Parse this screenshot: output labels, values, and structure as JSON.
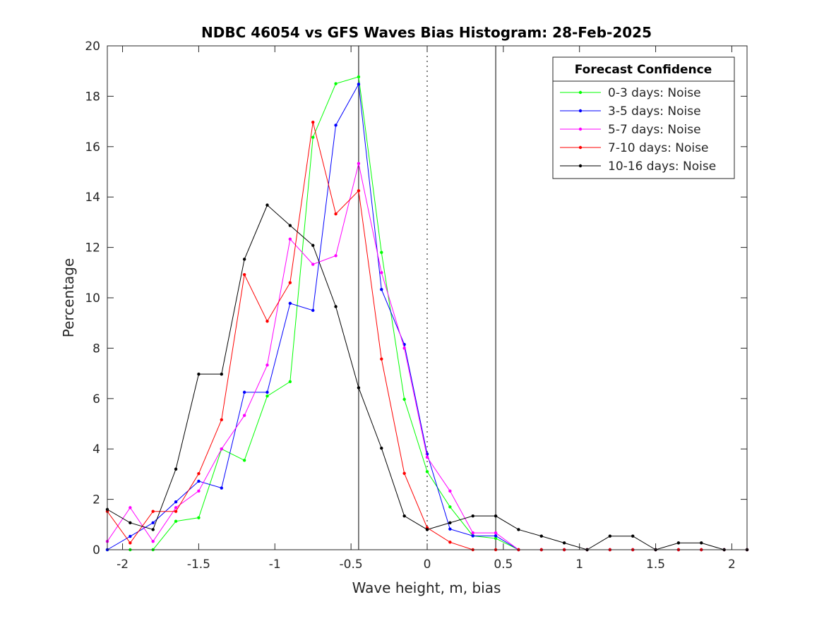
{
  "chart_data": {
    "type": "line",
    "title": "NDBC 46054 vs GFS Waves Bias Histogram: 28-Feb-2025",
    "xlabel": "Wave height, m, bias",
    "ylabel": "Percentage",
    "xlim": [
      -2.1,
      2.1
    ],
    "ylim": [
      0,
      20
    ],
    "xticks": [
      -2,
      -1.5,
      -1,
      -0.5,
      0,
      0.5,
      1,
      1.5,
      2
    ],
    "xtick_labels": [
      "-2",
      "-1.5",
      "-1",
      "-0.5",
      "0",
      "0.5",
      "1",
      "1.5",
      "2"
    ],
    "yticks": [
      0,
      2,
      4,
      6,
      8,
      10,
      12,
      14,
      16,
      18,
      20
    ],
    "ytick_labels": [
      "0",
      "2",
      "4",
      "6",
      "8",
      "10",
      "12",
      "14",
      "16",
      "18",
      "20"
    ],
    "grid": false,
    "legend_title": "Forecast Confidence",
    "legend_position": "top-right",
    "vlines": [
      {
        "x": -0.45,
        "style": "solid"
      },
      {
        "x": 0,
        "style": "dotted"
      },
      {
        "x": 0.45,
        "style": "solid"
      }
    ],
    "x": [
      -2.1,
      -1.95,
      -1.8,
      -1.65,
      -1.5,
      -1.35,
      -1.2,
      -1.05,
      -0.9,
      -0.75,
      -0.6,
      -0.45,
      -0.3,
      -0.15,
      0,
      0.15,
      0.3,
      0.45,
      0.6,
      0.75,
      0.9,
      1.05,
      1.2,
      1.35,
      1.5,
      1.65,
      1.8,
      1.95,
      2.1
    ],
    "series": [
      {
        "name": "0-3 days: Noise",
        "color": "#00ff00",
        "values": [
          0,
          0,
          0,
          1.13,
          1.27,
          4.0,
          3.55,
          6.1,
          6.67,
          16.37,
          18.5,
          18.77,
          11.8,
          5.97,
          3.1,
          1.7,
          0.55,
          0.45,
          0,
          0,
          0,
          0,
          0,
          0,
          0,
          0,
          0,
          0,
          0
        ]
      },
      {
        "name": "3-5 days: Noise",
        "color": "#0000ff",
        "values": [
          0,
          0.53,
          1.07,
          1.9,
          2.72,
          2.45,
          6.25,
          6.25,
          9.78,
          9.5,
          16.85,
          18.48,
          10.33,
          8.15,
          3.8,
          0.82,
          0.55,
          0.55,
          0,
          0,
          0,
          0,
          0,
          0,
          0,
          0,
          0,
          0,
          0
        ]
      },
      {
        "name": "5-7 days: Noise",
        "color": "#ff00ff",
        "values": [
          0.33,
          1.67,
          0.33,
          1.67,
          2.33,
          4.0,
          5.33,
          7.33,
          12.33,
          11.33,
          11.67,
          15.33,
          11.0,
          8.0,
          3.67,
          2.33,
          0.67,
          0.67,
          0,
          0,
          0,
          0,
          0,
          0,
          0,
          0,
          0,
          0,
          0
        ]
      },
      {
        "name": "7-10 days: Noise",
        "color": "#ff0000",
        "values": [
          1.52,
          0.27,
          1.52,
          1.52,
          3.02,
          5.16,
          10.92,
          9.07,
          10.6,
          16.97,
          13.33,
          14.25,
          7.57,
          3.03,
          0.87,
          0.3,
          0,
          0,
          0,
          0,
          0,
          0,
          0,
          0,
          0,
          0,
          0,
          0,
          0
        ]
      },
      {
        "name": "10-16 days: Noise",
        "color": "#000000",
        "values": [
          1.6,
          1.07,
          0.8,
          3.2,
          6.97,
          6.97,
          11.53,
          13.68,
          12.87,
          12.08,
          9.65,
          6.43,
          4.03,
          1.34,
          0.8,
          1.07,
          1.34,
          1.34,
          0.8,
          0.54,
          0.27,
          0,
          0.54,
          0.54,
          0,
          0.27,
          0.27,
          0,
          0
        ]
      }
    ]
  }
}
